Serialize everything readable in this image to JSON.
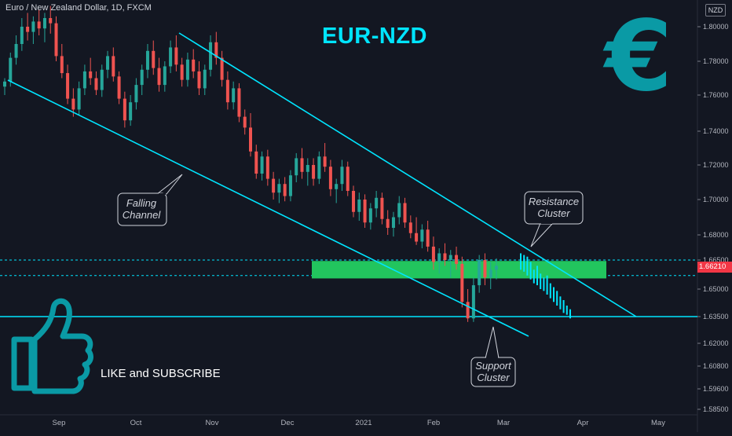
{
  "header": {
    "symbol_line": "Euro / New Zealand Dollar, 1D, FXCM",
    "currency_badge": "NZD"
  },
  "title": "EUR-NZD",
  "euro_symbol": "€",
  "thumbs_up_icon": "thumbs-up-icon",
  "cta_text": "LIKE and SUBSCRIBE",
  "annotations": {
    "falling_channel": [
      "Falling",
      "Channel"
    ],
    "resistance_cluster": [
      "Resistance",
      "Cluster"
    ],
    "support_cluster": [
      "Support",
      "Cluster"
    ]
  },
  "last_price_label": "1.66210",
  "colors": {
    "background": "#131722",
    "up_candle": "#26a69a",
    "down_candle": "#ef5350",
    "channel_lines": "#00e5ff",
    "zone": "#22c55e",
    "projection": "#00e5ff",
    "accent": "#0a9aa5"
  },
  "chart_data": {
    "type": "candlestick",
    "title": "EUR-NZD",
    "timeframe": "1D",
    "source": "FXCM",
    "y_tick_labels": [
      "1.80000",
      "1.78000",
      "1.76000",
      "1.74000",
      "1.72000",
      "1.70000",
      "1.68000",
      "1.66500",
      "1.65000",
      "1.63500",
      "1.62000",
      "1.60800",
      "1.59600",
      "1.58500"
    ],
    "x_tick_labels": [
      "Sep",
      "Oct",
      "Nov",
      "Dec",
      "2021",
      "Feb",
      "Mar",
      "Apr",
      "May"
    ],
    "ylim": [
      1.585,
      1.8
    ],
    "grid": false,
    "ohlc": [
      [
        1.765,
        1.77,
        1.76,
        1.768
      ],
      [
        1.768,
        1.785,
        1.765,
        1.782
      ],
      [
        1.782,
        1.795,
        1.778,
        1.79
      ],
      [
        1.79,
        1.805,
        1.786,
        1.8
      ],
      [
        1.8,
        1.808,
        1.792,
        1.797
      ],
      [
        1.797,
        1.806,
        1.79,
        1.803
      ],
      [
        1.803,
        1.81,
        1.795,
        1.799
      ],
      [
        1.799,
        1.808,
        1.791,
        1.805
      ],
      [
        1.805,
        1.812,
        1.796,
        1.802
      ],
      [
        1.802,
        1.806,
        1.78,
        1.783
      ],
      [
        1.783,
        1.79,
        1.77,
        1.773
      ],
      [
        1.773,
        1.778,
        1.755,
        1.758
      ],
      [
        1.758,
        1.764,
        1.748,
        1.752
      ],
      [
        1.752,
        1.768,
        1.749,
        1.764
      ],
      [
        1.764,
        1.778,
        1.76,
        1.774
      ],
      [
        1.774,
        1.782,
        1.766,
        1.77
      ],
      [
        1.77,
        1.774,
        1.76,
        1.763
      ],
      [
        1.763,
        1.778,
        1.759,
        1.775
      ],
      [
        1.775,
        1.786,
        1.77,
        1.783
      ],
      [
        1.783,
        1.788,
        1.768,
        1.771
      ],
      [
        1.771,
        1.774,
        1.755,
        1.758
      ],
      [
        1.758,
        1.762,
        1.742,
        1.746
      ],
      [
        1.746,
        1.76,
        1.743,
        1.756
      ],
      [
        1.756,
        1.77,
        1.752,
        1.766
      ],
      [
        1.766,
        1.778,
        1.76,
        1.775
      ],
      [
        1.775,
        1.79,
        1.77,
        1.786
      ],
      [
        1.786,
        1.792,
        1.772,
        1.776
      ],
      [
        1.776,
        1.782,
        1.762,
        1.766
      ],
      [
        1.766,
        1.78,
        1.762,
        1.777
      ],
      [
        1.777,
        1.792,
        1.773,
        1.788
      ],
      [
        1.788,
        1.795,
        1.774,
        1.778
      ],
      [
        1.778,
        1.782,
        1.765,
        1.769
      ],
      [
        1.769,
        1.785,
        1.765,
        1.781
      ],
      [
        1.781,
        1.787,
        1.77,
        1.774
      ],
      [
        1.774,
        1.78,
        1.76,
        1.764
      ],
      [
        1.764,
        1.778,
        1.76,
        1.775
      ],
      [
        1.775,
        1.795,
        1.771,
        1.791
      ],
      [
        1.791,
        1.797,
        1.778,
        1.782
      ],
      [
        1.782,
        1.786,
        1.765,
        1.769
      ],
      [
        1.769,
        1.774,
        1.752,
        1.756
      ],
      [
        1.756,
        1.768,
        1.752,
        1.764
      ],
      [
        1.764,
        1.767,
        1.745,
        1.748
      ],
      [
        1.748,
        1.752,
        1.738,
        1.742
      ],
      [
        1.742,
        1.75,
        1.725,
        1.728
      ],
      [
        1.728,
        1.732,
        1.712,
        1.715
      ],
      [
        1.715,
        1.728,
        1.711,
        1.725
      ],
      [
        1.725,
        1.729,
        1.708,
        1.712
      ],
      [
        1.712,
        1.716,
        1.7,
        1.704
      ],
      [
        1.704,
        1.712,
        1.698,
        1.709
      ],
      [
        1.709,
        1.713,
        1.699,
        1.702
      ],
      [
        1.702,
        1.717,
        1.699,
        1.714
      ],
      [
        1.714,
        1.727,
        1.71,
        1.724
      ],
      [
        1.724,
        1.73,
        1.712,
        1.716
      ],
      [
        1.716,
        1.724,
        1.708,
        1.72
      ],
      [
        1.72,
        1.724,
        1.708,
        1.712
      ],
      [
        1.712,
        1.728,
        1.709,
        1.725
      ],
      [
        1.725,
        1.733,
        1.716,
        1.719
      ],
      [
        1.719,
        1.723,
        1.702,
        1.706
      ],
      [
        1.706,
        1.712,
        1.698,
        1.709
      ],
      [
        1.709,
        1.723,
        1.705,
        1.719
      ],
      [
        1.719,
        1.722,
        1.702,
        1.705
      ],
      [
        1.705,
        1.708,
        1.69,
        1.693
      ],
      [
        1.693,
        1.704,
        1.688,
        1.7
      ],
      [
        1.7,
        1.703,
        1.684,
        1.687
      ],
      [
        1.687,
        1.698,
        1.683,
        1.695
      ],
      [
        1.695,
        1.705,
        1.69,
        1.701
      ],
      [
        1.701,
        1.704,
        1.686,
        1.689
      ],
      [
        1.689,
        1.694,
        1.68,
        1.684
      ],
      [
        1.684,
        1.693,
        1.679,
        1.69
      ],
      [
        1.69,
        1.702,
        1.686,
        1.698
      ],
      [
        1.698,
        1.701,
        1.684,
        1.687
      ],
      [
        1.687,
        1.691,
        1.678,
        1.681
      ],
      [
        1.681,
        1.69,
        1.674,
        1.676
      ],
      [
        1.676,
        1.686,
        1.672,
        1.683
      ],
      [
        1.683,
        1.688,
        1.67,
        1.673
      ],
      [
        1.673,
        1.679,
        1.66,
        1.664
      ],
      [
        1.664,
        1.672,
        1.658,
        1.669
      ],
      [
        1.669,
        1.675,
        1.662,
        1.665
      ],
      [
        1.665,
        1.671,
        1.656,
        1.668
      ],
      [
        1.668,
        1.673,
        1.66,
        1.663
      ],
      [
        1.663,
        1.667,
        1.64,
        1.643
      ],
      [
        1.643,
        1.65,
        1.632,
        1.634
      ],
      [
        1.634,
        1.656,
        1.632,
        1.652
      ],
      [
        1.652,
        1.668,
        1.648,
        1.665
      ],
      [
        1.665,
        1.669,
        1.652,
        1.656
      ],
      [
        1.656,
        1.664,
        1.65,
        1.66
      ],
      [
        1.66,
        1.666,
        1.655,
        1.662
      ]
    ],
    "channel": {
      "upper": [
        [
          1.795,
          "Oct"
        ],
        [
          1.64,
          "Apr"
        ]
      ],
      "lower": [
        [
          1.768,
          "Aug"
        ],
        [
          1.622,
          "Mar"
        ]
      ]
    },
    "horizontal_levels": [
      1.665,
      1.657,
      1.635
    ],
    "resistance_zone": [
      1.6555,
      1.6645
    ],
    "last_price": 1.6621
  }
}
